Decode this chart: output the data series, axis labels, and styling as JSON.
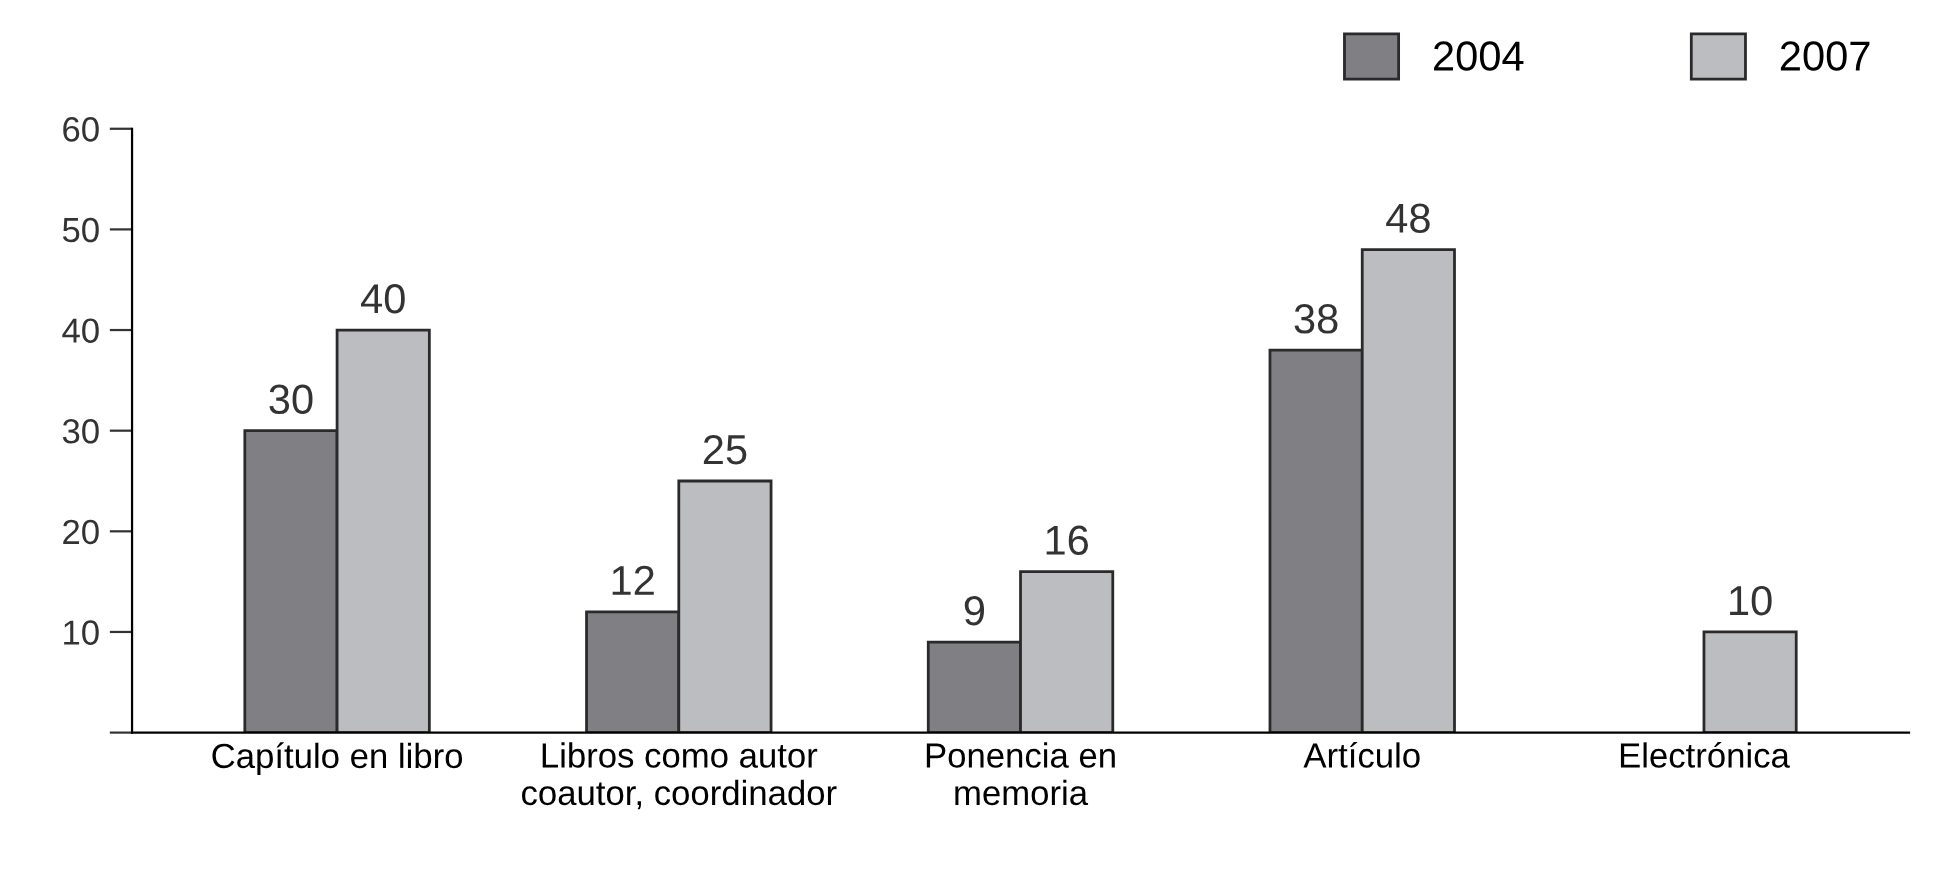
{
  "chart_data": {
    "type": "bar",
    "categories": [
      "Capítulo en libro",
      "Libros como autor\ncoautor, coordinador",
      "Ponencia en\nmemoria",
      "Artículo",
      "Electrónica"
    ],
    "series": [
      {
        "name": "2004",
        "color": "#7f7f84",
        "values": [
          30,
          12,
          9,
          38,
          null
        ]
      },
      {
        "name": "2007",
        "color": "#bcbdc1",
        "values": [
          40,
          25,
          16,
          48,
          10
        ]
      }
    ],
    "ylim": [
      0,
      60
    ],
    "yticks": [
      {
        "value": 0,
        "label": null
      },
      10,
      20,
      30,
      40,
      50,
      60
    ],
    "grid": false,
    "legend": "top right",
    "data_labels": true
  }
}
